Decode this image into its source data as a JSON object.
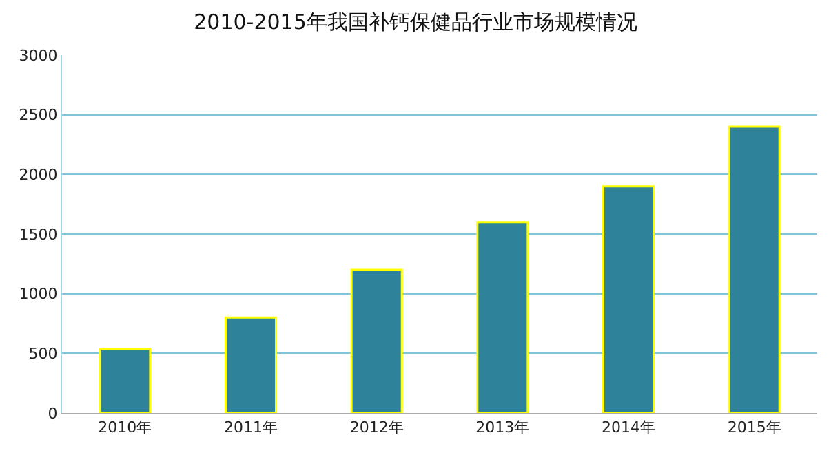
{
  "chart_data": {
    "type": "bar",
    "title": "2010-2015年我国补钙保健品行业市场规模情况",
    "categories": [
      "2010年",
      "2011年",
      "2012年",
      "2013年",
      "2014年",
      "2015年"
    ],
    "values": [
      540,
      800,
      1200,
      1600,
      1900,
      2400
    ],
    "color": "#2e829a",
    "ylim": [
      0,
      3000
    ],
    "yticks": [
      0,
      500,
      1000,
      1500,
      2000,
      2500,
      3000
    ],
    "grid": "y"
  }
}
